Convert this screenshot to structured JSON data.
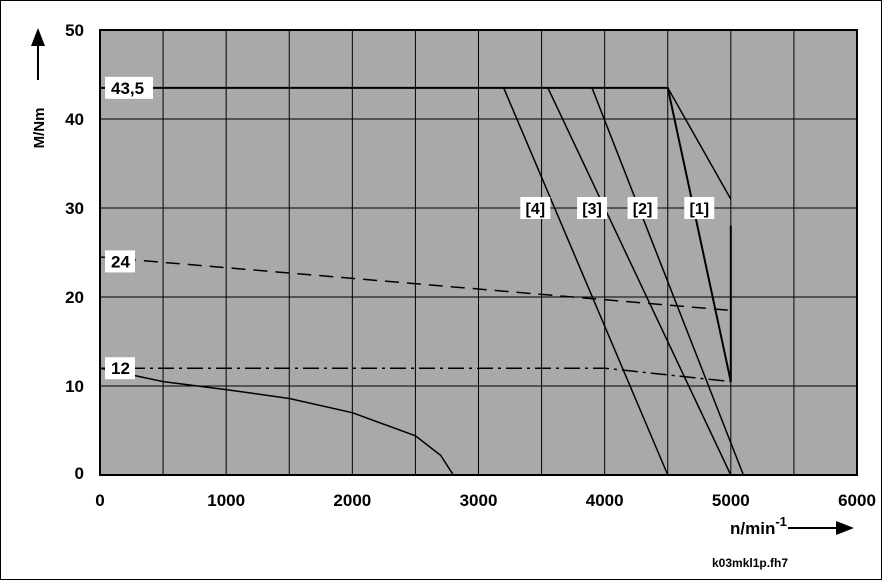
{
  "chart_data": {
    "type": "line",
    "title": "",
    "xlabel": "n/min",
    "xlabel_sup": "-1",
    "ylabel": "M/Nm",
    "xlim": [
      0,
      6000
    ],
    "ylim": [
      0,
      50
    ],
    "x_ticks": [
      0,
      1000,
      2000,
      3000,
      4000,
      5000,
      6000
    ],
    "y_ticks": [
      0,
      10,
      20,
      30,
      40,
      50
    ],
    "x_tick_labels": [
      "0",
      "1000",
      "2000",
      "3000",
      "4000",
      "5000",
      "6000"
    ],
    "y_tick_labels": [
      "0",
      "10",
      "20",
      "30",
      "40",
      "50"
    ],
    "grid": true,
    "legend": "none",
    "plot_background": "#a9a9a9",
    "file_ref": "k03mkl1p.fh7",
    "level_labels": [
      {
        "text": "43,5",
        "y": 43.5
      },
      {
        "text": "24",
        "y": 24
      },
      {
        "text": "12",
        "y": 12
      }
    ],
    "series": [
      {
        "style": "solid",
        "width": 2,
        "x": [
          0,
          4500,
          5000,
          5000
        ],
        "y": [
          43.5,
          43.5,
          10.5,
          28
        ]
      },
      {
        "style": "dash",
        "width": 1.5,
        "x": [
          0,
          5000
        ],
        "y": [
          24.5,
          18.5
        ]
      },
      {
        "style": "dashdot",
        "width": 1.5,
        "x": [
          0,
          4000,
          5000
        ],
        "y": [
          12,
          12,
          10.5
        ]
      },
      {
        "style": "solid",
        "width": 1.5,
        "x": [
          0,
          500,
          1000,
          1500,
          2000,
          2500,
          2700,
          2800
        ],
        "y": [
          12,
          10.5,
          9.6,
          8.6,
          7,
          4.4,
          2.2,
          0
        ]
      },
      {
        "style": "solid",
        "width": 1.5,
        "x": [
          3200,
          4500
        ],
        "y": [
          43.5,
          0
        ]
      },
      {
        "style": "solid",
        "width": 1.5,
        "x": [
          3900,
          5100
        ],
        "y": [
          43.5,
          0
        ]
      },
      {
        "style": "solid",
        "width": 1.5,
        "x": [
          4500,
          5000
        ],
        "y": [
          43.5,
          31
        ]
      },
      {
        "style": "solid",
        "width": 1.5,
        "x": [
          3550,
          5000
        ],
        "y": [
          43.5,
          0
        ]
      }
    ],
    "speed_labels": [
      {
        "text": "[1]",
        "x": 4750,
        "y": 30
      },
      {
        "text": "[2]",
        "x": 4300,
        "y": 30
      },
      {
        "text": "[3]",
        "x": 3900,
        "y": 30
      },
      {
        "text": "[4]",
        "x": 3450,
        "y": 30
      }
    ]
  }
}
